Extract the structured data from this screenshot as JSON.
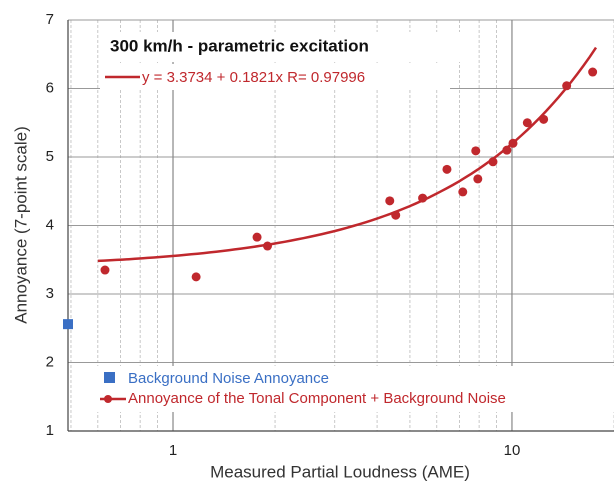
{
  "chart_data": {
    "type": "scatter",
    "title": "300 km/h - parametric excitation",
    "fit_label": "y = 3.3734 + 0.1821x   R= 0.97996",
    "x_label": "Measured Partial Loudness (AME)",
    "y_label": "Annoyance (7-point scale)",
    "xscale": "log",
    "xlim": [
      0.49,
      20
    ],
    "ylim": [
      1,
      7
    ],
    "xticks": [
      1,
      10
    ],
    "xminorticks": [
      0.5,
      0.6,
      0.7,
      0.8,
      0.9,
      2,
      3,
      4,
      5,
      6,
      7,
      8,
      9,
      20
    ],
    "yticks": [
      1,
      2,
      3,
      4,
      5,
      6,
      7
    ],
    "grid": true,
    "fit": {
      "intercept": 3.3734,
      "slope": 0.1821,
      "xrange": [
        0.6,
        17.7
      ]
    },
    "series": [
      {
        "name": "Background Noise Annoyance",
        "color": "#3a6fc4",
        "marker": "square",
        "x": [
          0.49
        ],
        "values": [
          2.56
        ]
      },
      {
        "name": "Annoyance of the Tonal Component + Background Noise",
        "color": "#c0282d",
        "marker": "circle",
        "x": [
          0.63,
          1.17,
          1.77,
          1.9,
          4.36,
          4.54,
          5.45,
          6.43,
          7.16,
          7.82,
          7.93,
          8.79,
          9.66,
          10.07,
          11.1,
          12.4,
          14.5,
          17.3
        ],
        "values": [
          3.35,
          3.25,
          3.83,
          3.7,
          4.36,
          4.15,
          4.4,
          4.82,
          4.49,
          5.09,
          4.68,
          4.93,
          5.1,
          5.2,
          5.5,
          5.55,
          6.04,
          6.24
        ]
      }
    ]
  }
}
